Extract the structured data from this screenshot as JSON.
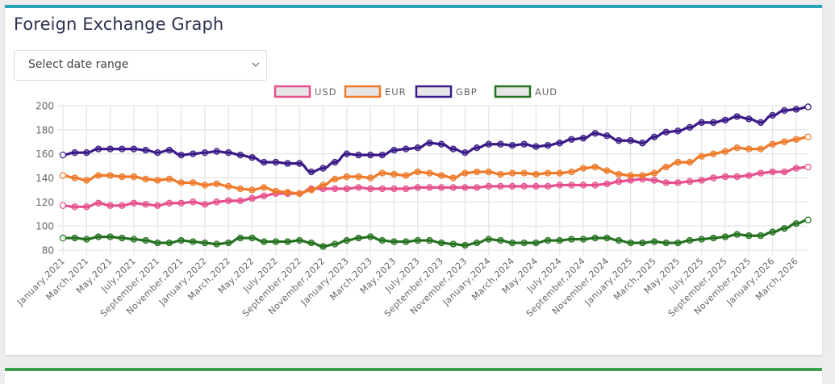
{
  "header": {
    "title": "Foreign Exchange Graph"
  },
  "date_select": {
    "placeholder": "Select date range",
    "icon": "chevron-down-icon"
  },
  "colors": {
    "card_top_border": "#2aa6b8",
    "next_card_border": "#3aa04e"
  },
  "chart_data": {
    "type": "line",
    "title": "",
    "xlabel": "",
    "ylabel": "",
    "ylim": [
      80,
      200
    ],
    "yticks": [
      80,
      100,
      120,
      140,
      160,
      180,
      200
    ],
    "grid": true,
    "legend_position": "top-center",
    "x": [
      "January,2021",
      "February,2021",
      "March,2021",
      "April,2021",
      "May,2021",
      "June,2021",
      "July,2021",
      "August,2021",
      "September,2021",
      "October,2021",
      "November,2021",
      "December,2021",
      "January,2022",
      "February,2022",
      "March,2022",
      "April,2022",
      "May,2022",
      "June,2022",
      "July,2022",
      "August,2022",
      "September,2022",
      "October,2022",
      "November,2022",
      "December,2022",
      "January,2023",
      "February,2023",
      "March,2023",
      "April,2023",
      "May,2023",
      "June,2023",
      "July,2023",
      "August,2023",
      "September,2023",
      "October,2023",
      "November,2023",
      "December,2023",
      "January,2024",
      "February,2024",
      "March,2024",
      "April,2024",
      "May,2024",
      "June,2024",
      "July,2024",
      "August,2024",
      "September,2024",
      "October,2024",
      "November,2024",
      "December,2024",
      "January,2025",
      "February,2025",
      "March,2025",
      "April,2025",
      "May,2025",
      "June,2025",
      "July,2025",
      "August,2025",
      "September,2025",
      "October,2025",
      "November,2025",
      "December,2025",
      "January,2026",
      "February,2026",
      "March,2026",
      "April,2026"
    ],
    "tick_labels": [
      "January,2021",
      "March,2021",
      "May,2021",
      "July,2021",
      "September,2021",
      "November,2021",
      "January,2022",
      "March,2022",
      "May,2022",
      "July,2022",
      "September,2022",
      "November,2022",
      "January,2023",
      "March,2023",
      "May,2023",
      "July,2023",
      "September,2023",
      "November,2023",
      "January,2024",
      "March,2024",
      "May,2024",
      "July,2024",
      "September,2024",
      "November,2024",
      "January,2025",
      "March,2025",
      "May,2025",
      "July,2025",
      "September,2025",
      "November,2025",
      "January,2026",
      "March,2026"
    ],
    "series": [
      {
        "name": "USD",
        "color": "#e5508c",
        "values": [
          117,
          116,
          116,
          119,
          117,
          117,
          119,
          118,
          117,
          119,
          119,
          120,
          118,
          120,
          121,
          121,
          123,
          125,
          127,
          127,
          127,
          131,
          131,
          131,
          131,
          132,
          131,
          131,
          131,
          131,
          132,
          132,
          132,
          132,
          132,
          132,
          133,
          133,
          133,
          133,
          133,
          133,
          134,
          134,
          134,
          134,
          135,
          137,
          138,
          139,
          138,
          136,
          136,
          137,
          138,
          140,
          141,
          141,
          142,
          144,
          145,
          145,
          148,
          149
        ]
      },
      {
        "name": "EUR",
        "color": "#ee7a2a",
        "values": [
          142,
          140,
          138,
          142,
          142,
          141,
          141,
          139,
          138,
          139,
          136,
          136,
          134,
          135,
          133,
          131,
          130,
          132,
          129,
          128,
          127,
          130,
          134,
          139,
          141,
          141,
          140,
          144,
          143,
          142,
          145,
          144,
          142,
          140,
          144,
          145,
          145,
          143,
          144,
          144,
          143,
          144,
          144,
          145,
          148,
          149,
          146,
          143,
          142,
          142,
          144,
          149,
          153,
          153,
          158,
          160,
          162,
          165,
          164,
          164,
          168,
          170,
          172,
          174
        ]
      },
      {
        "name": "GBP",
        "color": "#3a1a86",
        "values": [
          159,
          161,
          161,
          164,
          164,
          164,
          164,
          163,
          161,
          163,
          159,
          160,
          161,
          162,
          161,
          159,
          157,
          153,
          153,
          152,
          152,
          145,
          148,
          153,
          160,
          159,
          159,
          159,
          163,
          164,
          165,
          169,
          168,
          164,
          161,
          165,
          168,
          168,
          167,
          168,
          166,
          167,
          169,
          172,
          173,
          177,
          175,
          171,
          171,
          169,
          174,
          178,
          179,
          182,
          186,
          186,
          188,
          191,
          189,
          186,
          192,
          196,
          197,
          199
        ]
      },
      {
        "name": "AUD",
        "color": "#24711f",
        "values": [
          90,
          90,
          89,
          91,
          91,
          90,
          89,
          88,
          86,
          86,
          88,
          87,
          86,
          85,
          86,
          90,
          90,
          87,
          87,
          87,
          88,
          86,
          83,
          85,
          88,
          90,
          91,
          88,
          87,
          87,
          88,
          88,
          86,
          85,
          84,
          86,
          89,
          88,
          86,
          86,
          86,
          88,
          88,
          89,
          89,
          90,
          90,
          88,
          86,
          86,
          87,
          86,
          86,
          88,
          89,
          90,
          91,
          93,
          92,
          92,
          95,
          98,
          102,
          105
        ]
      }
    ]
  }
}
